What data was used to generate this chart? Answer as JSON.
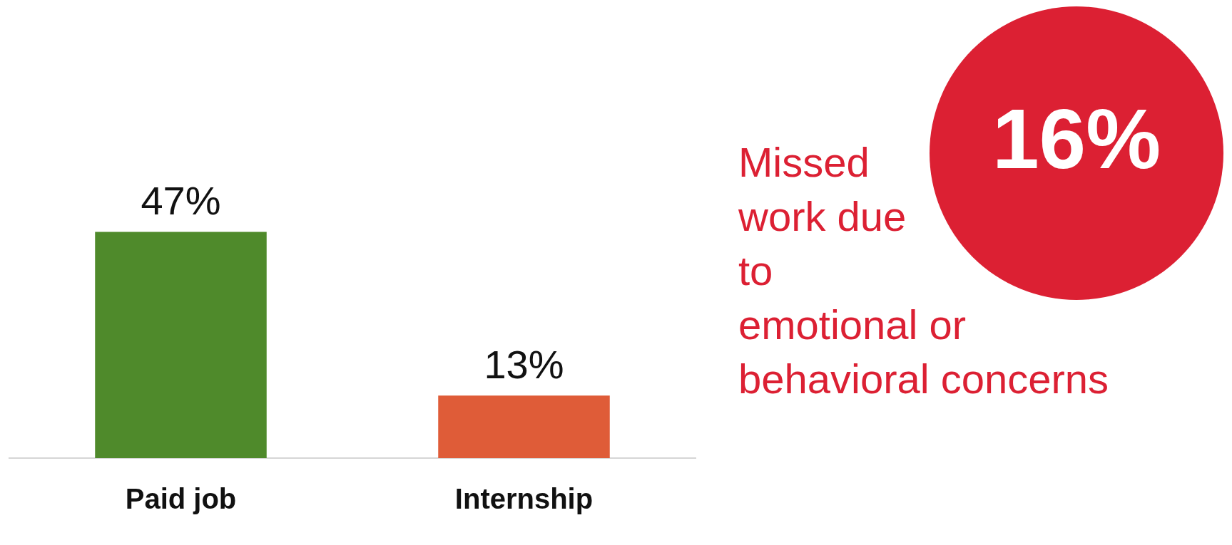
{
  "chart_data": [
    {
      "type": "bar",
      "categories": [
        "Paid job",
        "Internship"
      ],
      "values": [
        47,
        13
      ],
      "colors": [
        "#4f8a2b",
        "#df5c38"
      ],
      "value_labels": [
        "47%",
        "13%"
      ]
    },
    {
      "type": "other",
      "annotations": [
        "Missed work due to emotional or behavioral concerns",
        "16%"
      ]
    }
  ]
}
